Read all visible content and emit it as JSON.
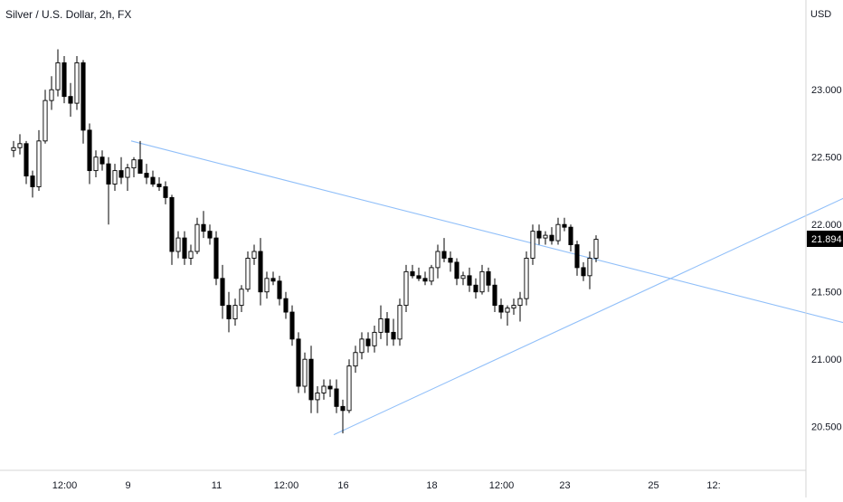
{
  "header": {
    "title": "Silver / U.S. Dollar, 2h, FX",
    "currency": "USD"
  },
  "price_label": {
    "value": "21.894",
    "background": "#000000",
    "text_color": "#ffffff"
  },
  "colors": {
    "trendline": "#90bff9",
    "candle_up_body": "#ffffff",
    "candle_down_body": "#000000",
    "candle_outline": "#000000",
    "axis_line": "#d6d6d6",
    "axis_text": "#131722"
  },
  "chart_data": {
    "type": "candlestick",
    "symbol": "Silver / U.S. Dollar",
    "interval": "2h",
    "source": "FX",
    "y_axis": {
      "label": "USD",
      "ticks": [
        23.0,
        22.5,
        22.0,
        21.5,
        21.0,
        20.5
      ],
      "tick_labels": [
        "23.000",
        "22.500",
        "22.000",
        "21.500",
        "21.000",
        "20.500"
      ],
      "range": [
        20.0,
        23.55
      ]
    },
    "x_axis": {
      "range_index": [
        0,
        110
      ],
      "ticks": [
        {
          "label": "12:00",
          "idx": 9.5
        },
        {
          "label": "9",
          "idx": 19.5
        },
        {
          "label": "11",
          "idx": 33.5
        },
        {
          "label": "12:00",
          "idx": 44.5
        },
        {
          "label": "16",
          "idx": 53.5
        },
        {
          "label": "18",
          "idx": 67.5
        },
        {
          "label": "12:00",
          "idx": 78.5
        },
        {
          "label": "23",
          "idx": 88.5
        },
        {
          "label": "25",
          "idx": 102.5
        },
        {
          "label": "12:",
          "idx": 112
        }
      ]
    },
    "last_price": 21.894,
    "ohlc": [
      [
        22.55,
        22.62,
        22.5,
        22.57
      ],
      [
        22.57,
        22.67,
        22.52,
        22.6
      ],
      [
        22.6,
        22.62,
        22.3,
        22.36
      ],
      [
        22.36,
        22.4,
        22.2,
        22.28
      ],
      [
        22.28,
        22.7,
        22.25,
        22.62
      ],
      [
        22.62,
        23.0,
        22.6,
        22.92
      ],
      [
        22.92,
        23.1,
        22.85,
        23.0
      ],
      [
        23.0,
        23.3,
        22.95,
        23.2
      ],
      [
        23.2,
        23.25,
        22.9,
        22.95
      ],
      [
        22.95,
        23.05,
        22.8,
        22.9
      ],
      [
        22.9,
        23.25,
        22.85,
        23.2
      ],
      [
        23.2,
        23.22,
        22.6,
        22.7
      ],
      [
        22.7,
        22.75,
        22.3,
        22.4
      ],
      [
        22.4,
        22.55,
        22.35,
        22.5
      ],
      [
        22.5,
        22.55,
        22.4,
        22.45
      ],
      [
        22.45,
        22.5,
        22.0,
        22.3
      ],
      [
        22.3,
        22.45,
        22.25,
        22.4
      ],
      [
        22.4,
        22.5,
        22.3,
        22.35
      ],
      [
        22.35,
        22.45,
        22.25,
        22.42
      ],
      [
        22.42,
        22.5,
        22.35,
        22.48
      ],
      [
        22.48,
        22.62,
        22.4,
        22.38
      ],
      [
        22.38,
        22.45,
        22.3,
        22.35
      ],
      [
        22.35,
        22.4,
        22.28,
        22.3
      ],
      [
        22.3,
        22.35,
        22.25,
        22.28
      ],
      [
        22.28,
        22.32,
        22.15,
        22.2
      ],
      [
        22.2,
        22.22,
        21.7,
        21.8
      ],
      [
        21.8,
        21.95,
        21.75,
        21.9
      ],
      [
        21.9,
        21.95,
        21.7,
        21.75
      ],
      [
        21.75,
        21.85,
        21.7,
        21.8
      ],
      [
        21.8,
        22.05,
        21.78,
        22.0
      ],
      [
        22.0,
        22.1,
        21.9,
        21.95
      ],
      [
        21.95,
        22.0,
        21.85,
        21.9
      ],
      [
        21.9,
        21.95,
        21.55,
        21.6
      ],
      [
        21.6,
        21.7,
        21.3,
        21.4
      ],
      [
        21.4,
        21.5,
        21.2,
        21.3
      ],
      [
        21.3,
        21.45,
        21.25,
        21.4
      ],
      [
        21.4,
        21.55,
        21.35,
        21.52
      ],
      [
        21.52,
        21.8,
        21.5,
        21.75
      ],
      [
        21.75,
        21.85,
        21.7,
        21.8
      ],
      [
        21.8,
        21.9,
        21.4,
        21.5
      ],
      [
        21.5,
        21.65,
        21.45,
        21.6
      ],
      [
        21.6,
        21.65,
        21.55,
        21.58
      ],
      [
        21.58,
        21.62,
        21.4,
        21.45
      ],
      [
        21.45,
        21.5,
        21.3,
        21.35
      ],
      [
        21.35,
        21.4,
        21.1,
        21.15
      ],
      [
        21.15,
        21.2,
        20.75,
        20.8
      ],
      [
        20.8,
        21.05,
        20.75,
        21.0
      ],
      [
        21.0,
        21.1,
        20.6,
        20.7
      ],
      [
        20.7,
        20.8,
        20.6,
        20.75
      ],
      [
        20.75,
        20.85,
        20.7,
        20.8
      ],
      [
        20.8,
        20.85,
        20.72,
        20.78
      ],
      [
        20.78,
        20.85,
        20.6,
        20.65
      ],
      [
        20.65,
        20.7,
        20.45,
        20.62
      ],
      [
        20.62,
        21.0,
        20.6,
        20.95
      ],
      [
        20.95,
        21.1,
        20.9,
        21.05
      ],
      [
        21.05,
        21.2,
        21.0,
        21.15
      ],
      [
        21.15,
        21.2,
        21.05,
        21.1
      ],
      [
        21.1,
        21.25,
        21.05,
        21.2
      ],
      [
        21.2,
        21.4,
        21.15,
        21.3
      ],
      [
        21.3,
        21.35,
        21.1,
        21.2
      ],
      [
        21.2,
        21.3,
        21.1,
        21.15
      ],
      [
        21.15,
        21.45,
        21.1,
        21.4
      ],
      [
        21.4,
        21.7,
        21.35,
        21.65
      ],
      [
        21.65,
        21.7,
        21.6,
        21.62
      ],
      [
        21.62,
        21.68,
        21.58,
        21.6
      ],
      [
        21.6,
        21.65,
        21.55,
        21.58
      ],
      [
        21.58,
        21.7,
        21.55,
        21.68
      ],
      [
        21.68,
        21.85,
        21.6,
        21.8
      ],
      [
        21.8,
        21.9,
        21.72,
        21.75
      ],
      [
        21.75,
        21.8,
        21.65,
        21.72
      ],
      [
        21.72,
        21.75,
        21.55,
        21.6
      ],
      [
        21.6,
        21.65,
        21.55,
        21.62
      ],
      [
        21.62,
        21.68,
        21.5,
        21.55
      ],
      [
        21.55,
        21.6,
        21.45,
        21.5
      ],
      [
        21.5,
        21.7,
        21.48,
        21.65
      ],
      [
        21.65,
        21.68,
        21.5,
        21.55
      ],
      [
        21.55,
        21.6,
        21.35,
        21.4
      ],
      [
        21.4,
        21.45,
        21.3,
        21.35
      ],
      [
        21.35,
        21.4,
        21.25,
        21.38
      ],
      [
        21.38,
        21.45,
        21.33,
        21.4
      ],
      [
        21.4,
        21.5,
        21.28,
        21.45
      ],
      [
        21.45,
        21.8,
        21.4,
        21.75
      ],
      [
        21.75,
        22.0,
        21.7,
        21.95
      ],
      [
        21.95,
        22.0,
        21.85,
        21.9
      ],
      [
        21.9,
        21.95,
        21.85,
        21.92
      ],
      [
        21.92,
        21.98,
        21.85,
        21.88
      ],
      [
        21.88,
        22.05,
        21.85,
        22.0
      ],
      [
        22.0,
        22.05,
        21.95,
        21.98
      ],
      [
        21.98,
        22.0,
        21.8,
        21.85
      ],
      [
        21.85,
        21.88,
        21.62,
        21.68
      ],
      [
        21.68,
        21.72,
        21.58,
        21.62
      ],
      [
        21.62,
        21.8,
        21.52,
        21.75
      ],
      [
        21.75,
        21.92,
        21.72,
        21.89
      ]
    ],
    "trendlines": [
      {
        "x1": 20,
        "y1": 22.62,
        "x2": 141,
        "y2": 21.17
      },
      {
        "x1": 52,
        "y1": 20.44,
        "x2": 141,
        "y2": 22.38
      }
    ]
  }
}
